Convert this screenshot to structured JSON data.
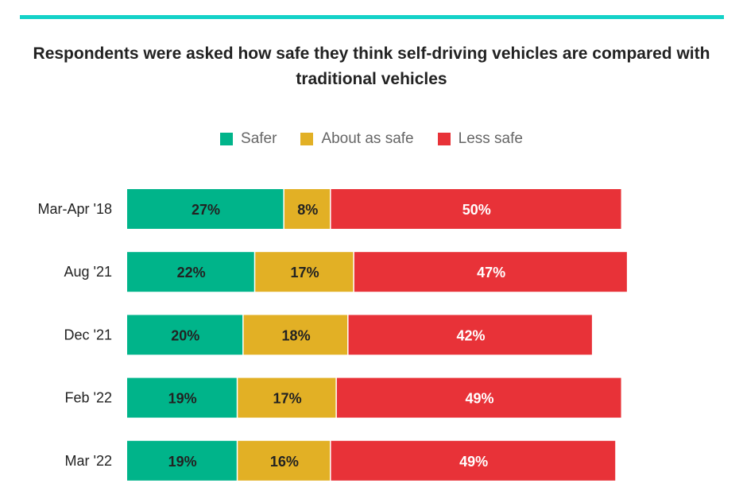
{
  "chart_data": {
    "type": "bar",
    "orientation": "horizontal",
    "stacked": true,
    "title": "Respondents were asked how safe they think self-driving vehicles are compared with traditional vehicles",
    "categories": [
      "Mar-Apr '18",
      "Aug '21",
      "Dec '21",
      "Feb '22",
      "Mar '22"
    ],
    "series": [
      {
        "name": "Safer",
        "color": "#00b48a",
        "label_color": "#222222",
        "values": [
          27,
          22,
          20,
          19,
          19
        ]
      },
      {
        "name": "About as safe",
        "color": "#e2b025",
        "label_color": "#222222",
        "values": [
          8,
          17,
          18,
          17,
          16
        ]
      },
      {
        "name": "Less safe",
        "color": "#e83238",
        "label_color": "#ffffff",
        "values": [
          50,
          47,
          42,
          49,
          49
        ]
      }
    ],
    "value_format": "%",
    "legend": "top",
    "grid": false,
    "accent_color": "#14d2c8"
  }
}
